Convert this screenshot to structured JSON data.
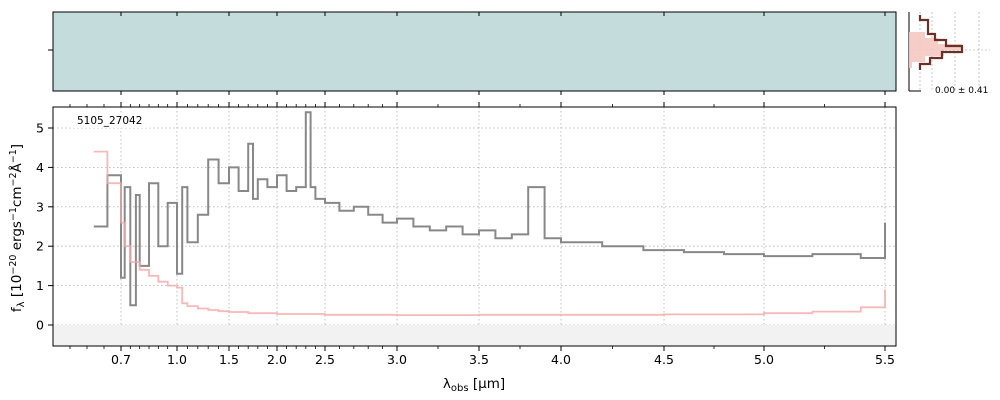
{
  "figure": {
    "spectrum_id": "5105_27042",
    "histogram_label": "0.00 ± 0.41"
  },
  "chart_data": [
    {
      "type": "heatmap",
      "panel": "2D spectrum",
      "colormap": [
        "#ffffff",
        "#c4dcdc",
        "#6a8a98",
        "#0c1830"
      ],
      "xlim": [
        0.5,
        5.53
      ],
      "trace_row": "dark horizontal trace near the middle of the strip",
      "description_values": "pixel intensities not labeled"
    },
    {
      "type": "line",
      "panel": "1D spectrum",
      "x_scale": "nonlinear (wavelength, resolution-spaced)",
      "xlim": [
        0.5,
        5.53
      ],
      "ylim": [
        -0.55,
        5.5
      ],
      "grid": true,
      "xlabel": "λ_obs [μm]",
      "ylabel": "f_λ [10^-20 ergs^-1cm^-2Å^-1]",
      "xticks": [
        0.7,
        1.0,
        1.5,
        2.0,
        2.5,
        3.0,
        3.5,
        4.0,
        4.5,
        5.0,
        5.5
      ],
      "xtick_labels": [
        "0.7",
        "1.0",
        "1.5",
        "2.0",
        "2.5",
        "3.0",
        "3.5",
        "4.0",
        "4.5",
        "5.0",
        "5.5"
      ],
      "yticks": [
        0,
        1,
        2,
        3,
        4,
        5
      ],
      "ytick_labels": [
        "0",
        "1",
        "2",
        "3",
        "4",
        "5"
      ],
      "series": [
        {
          "color": "#888888",
          "x": [
            0.62,
            0.66,
            0.7,
            0.72,
            0.75,
            0.78,
            0.8,
            0.85,
            0.9,
            0.95,
            1.0,
            1.05,
            1.1,
            1.2,
            1.3,
            1.4,
            1.5,
            1.6,
            1.7,
            1.75,
            1.8,
            1.9,
            2.0,
            2.1,
            2.2,
            2.3,
            2.35,
            2.4,
            2.5,
            2.6,
            2.7,
            2.8,
            2.9,
            3.0,
            3.1,
            3.2,
            3.3,
            3.4,
            3.5,
            3.6,
            3.7,
            3.8,
            3.9,
            4.0,
            4.2,
            4.4,
            4.6,
            4.8,
            5.0,
            5.2,
            5.4,
            5.5
          ],
          "y": [
            2.5,
            3.8,
            1.2,
            3.5,
            0.5,
            3.3,
            1.5,
            3.6,
            2.0,
            3.1,
            1.3,
            3.5,
            2.1,
            2.8,
            4.2,
            3.6,
            4.0,
            3.4,
            4.6,
            3.2,
            3.7,
            3.5,
            3.8,
            3.4,
            3.5,
            5.4,
            3.5,
            3.2,
            3.1,
            2.9,
            3.0,
            2.8,
            2.6,
            2.7,
            2.5,
            2.4,
            2.5,
            2.3,
            2.4,
            2.2,
            2.3,
            3.5,
            2.2,
            2.1,
            2.0,
            1.9,
            1.85,
            1.8,
            1.75,
            1.8,
            1.7,
            2.6
          ]
        },
        {
          "color": "#f4a6a6",
          "x": [
            0.62,
            0.66,
            0.7,
            0.72,
            0.75,
            0.8,
            0.85,
            0.9,
            0.95,
            1.0,
            1.05,
            1.1,
            1.2,
            1.3,
            1.4,
            1.5,
            1.7,
            2.0,
            2.5,
            3.0,
            3.5,
            4.0,
            4.5,
            5.0,
            5.2,
            5.4,
            5.5
          ],
          "y": [
            4.4,
            3.6,
            2.6,
            2.0,
            1.6,
            1.4,
            1.25,
            1.1,
            1.0,
            0.95,
            0.55,
            0.48,
            0.42,
            0.38,
            0.35,
            0.33,
            0.3,
            0.28,
            0.26,
            0.25,
            0.26,
            0.26,
            0.27,
            0.3,
            0.34,
            0.45,
            0.9
          ]
        }
      ]
    },
    {
      "type": "bar",
      "panel": "residual histogram",
      "description_values": "step histogram of residuals, peaked near 0",
      "label": "0.00 ± 0.41"
    }
  ]
}
